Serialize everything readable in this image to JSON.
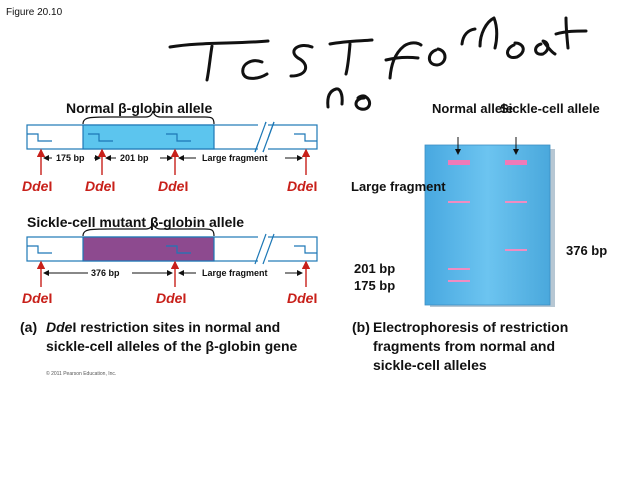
{
  "figure_label": "Figure 20.10",
  "handwriting": {
    "line1": "Test for mutant",
    "line2": "no"
  },
  "normal_allele": {
    "title_prefix": "Normal ",
    "title_beta": "β",
    "title_suffix": "-globin allele",
    "fragments": [
      "175 bp",
      "201 bp",
      "Large fragment"
    ]
  },
  "sickle_allele": {
    "title_prefix": "Sickle-cell mutant ",
    "title_beta": "β",
    "title_suffix": "-globin allele",
    "fragments": [
      "376 bp",
      "Large fragment"
    ]
  },
  "enzyme": {
    "name": "Dde",
    "suffix": "I"
  },
  "gel": {
    "lane_normal": "Normal allele",
    "lane_sickle": "Sickle-cell allele",
    "large_fragment_label": "Large fragment",
    "label_201": "201 bp",
    "label_175": "175 bp",
    "label_376": "376 bp",
    "colors": {
      "gel": "#5cb8ea",
      "band": "#f08cc2",
      "normal_exon": "#5cc5ee",
      "sickle_exon": "#8d4a8f",
      "site": "#c8201a"
    }
  },
  "caption_a": {
    "letter": "(a)",
    "enzyme": "Dde",
    "enzyme_suffix": "I",
    "text1": " restriction sites in normal and",
    "text2_prefix": "sickle-cell alleles of the ",
    "text2_beta": "β",
    "text2_suffix": "-globin gene"
  },
  "caption_b": {
    "letter": "(b)",
    "text1": "Electrophoresis of restriction",
    "text2": "fragments from normal and",
    "text3": "sickle-cell alleles"
  },
  "copyright": "© 2011 Pearson Education, Inc."
}
